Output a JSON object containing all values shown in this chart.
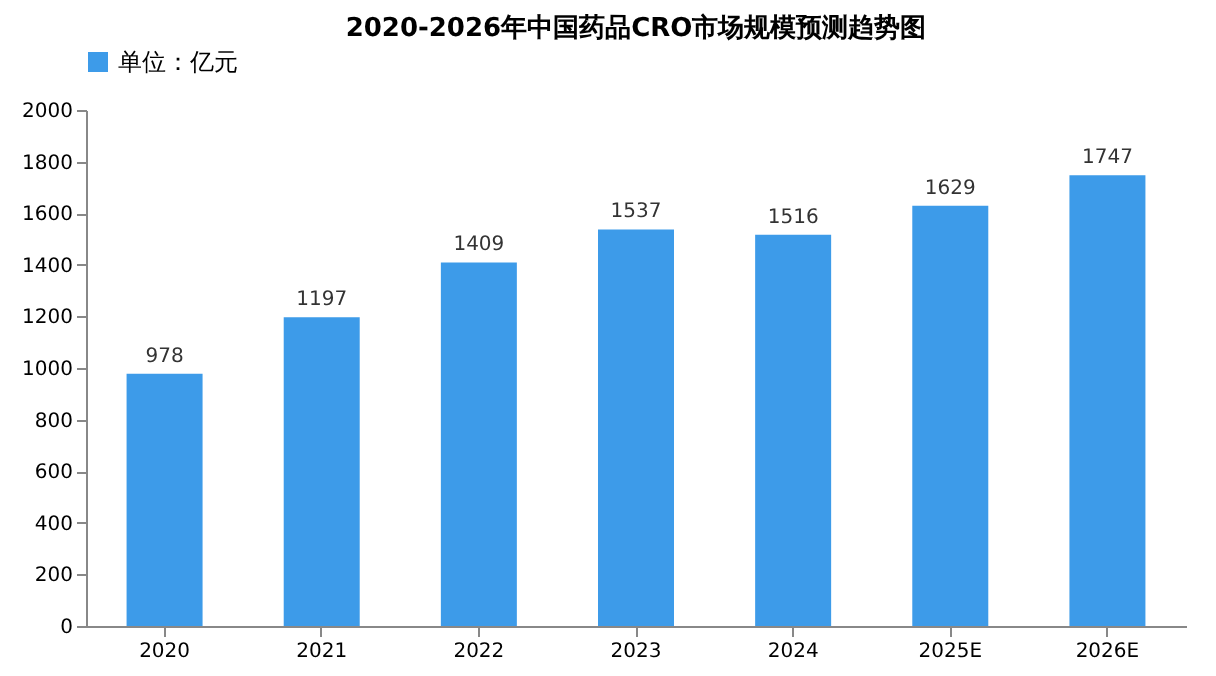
{
  "chart_data": {
    "type": "bar",
    "title": "2020-2026年中国药品CRO市场规模预测趋势图",
    "categories": [
      "2020",
      "2021",
      "2022",
      "2023",
      "2024",
      "2025E",
      "2026E"
    ],
    "series": [
      {
        "name": "单位：亿元",
        "color": "#3d9be9",
        "values": [
          978,
          1197,
          1409,
          1537,
          1516,
          1629,
          1747
        ]
      }
    ],
    "ylim": [
      0,
      2000
    ],
    "yticks": [
      0,
      200,
      400,
      600,
      800,
      1000,
      1200,
      1400,
      1600,
      1800,
      2000
    ],
    "grid": false,
    "legend": "top",
    "data_labels": true
  }
}
